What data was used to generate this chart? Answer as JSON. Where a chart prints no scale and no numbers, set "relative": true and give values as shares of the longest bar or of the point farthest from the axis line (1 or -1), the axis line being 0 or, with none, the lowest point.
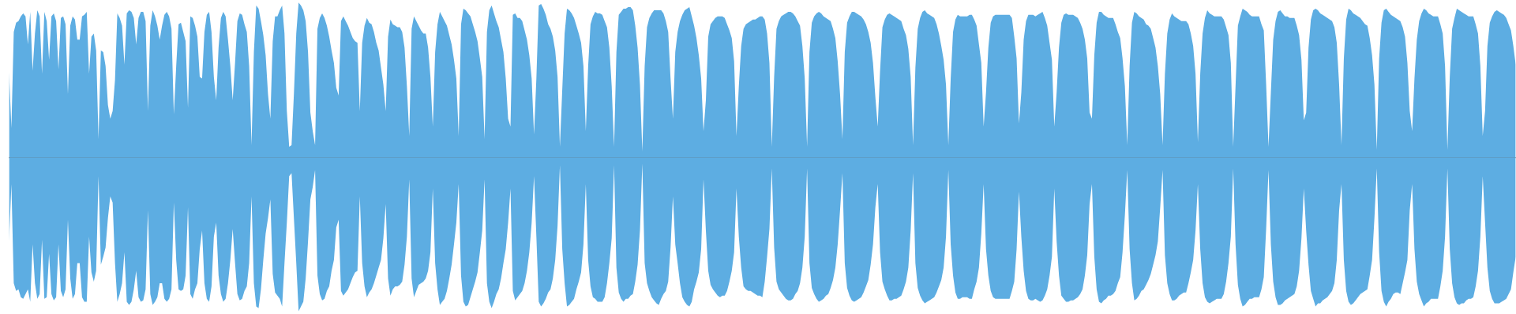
{
  "chart_data": {
    "type": "area",
    "relative": true,
    "categories": [
      null,
      null,
      null,
      null,
      null,
      null,
      null,
      null,
      null,
      null,
      null,
      null,
      null,
      null,
      null,
      null,
      null,
      null,
      null,
      null,
      null,
      null,
      null,
      null,
      null,
      null,
      null,
      null,
      null,
      null,
      null,
      null,
      null,
      null,
      null,
      null,
      null,
      null,
      null,
      null,
      null,
      null,
      null,
      null,
      null,
      null,
      null,
      null,
      null,
      null,
      null,
      null,
      null,
      null,
      null,
      null,
      null,
      null,
      null,
      null,
      null,
      null,
      null,
      null,
      null,
      null,
      null,
      null,
      null,
      null,
      null,
      null,
      null,
      null,
      null,
      null,
      null,
      null,
      null,
      null,
      null,
      null,
      null,
      null,
      null,
      null,
      null,
      null,
      null,
      null,
      null,
      null,
      null,
      null,
      null,
      null,
      null,
      null,
      null,
      null,
      null,
      null,
      null,
      null,
      null,
      null,
      null,
      null,
      null,
      null,
      null,
      null,
      null,
      null,
      null,
      null,
      null,
      null,
      null,
      null,
      null,
      null,
      null,
      null,
      null,
      null,
      null,
      null,
      null,
      null,
      null,
      null,
      null,
      null,
      null,
      null,
      null,
      null,
      null,
      null,
      null,
      null,
      null,
      null,
      null,
      null,
      null,
      null,
      null,
      null,
      null,
      null,
      null,
      null,
      null,
      null,
      null,
      null,
      null,
      null,
      null,
      null,
      null,
      null,
      null,
      null,
      null,
      null,
      null,
      null,
      null,
      null,
      null,
      null,
      null,
      null,
      null,
      null,
      null,
      null,
      null,
      null,
      null,
      null,
      null,
      null,
      null,
      null,
      null,
      null,
      null,
      null,
      null,
      null,
      null,
      null,
      null,
      null,
      null,
      null,
      null,
      null,
      null,
      null,
      null,
      null,
      null,
      null,
      null,
      null,
      null,
      null,
      null,
      null,
      null,
      null,
      null,
      null,
      null,
      null,
      null,
      null,
      null,
      null,
      null,
      null,
      null,
      null,
      null,
      null,
      null,
      null,
      null,
      null,
      null,
      null,
      null,
      null,
      null,
      null,
      null,
      null,
      null,
      null,
      null,
      null,
      null,
      null,
      null,
      null,
      null,
      null,
      null,
      null,
      null,
      null,
      null,
      null,
      null,
      null,
      null,
      null,
      null,
      null,
      null,
      null,
      null,
      null,
      null,
      null,
      null,
      null,
      null,
      null,
      null,
      null,
      null,
      null,
      null,
      null,
      null,
      null,
      null,
      null,
      null,
      null,
      null,
      null,
      null,
      null,
      null,
      null,
      null,
      null,
      null,
      null,
      null,
      null,
      null,
      null,
      null,
      null,
      null,
      null,
      null,
      null,
      null,
      null,
      null,
      null,
      null,
      null,
      null,
      null,
      null,
      null,
      null,
      null,
      null,
      null,
      null,
      null,
      null,
      null,
      null,
      null,
      null,
      null,
      null,
      null,
      null,
      null,
      null,
      null,
      null,
      null,
      null,
      null,
      null,
      null,
      null,
      null,
      null,
      null,
      null,
      null,
      null,
      null,
      null,
      null,
      null,
      null,
      null,
      null,
      null,
      null,
      null,
      null,
      null,
      null,
      null,
      null,
      null,
      null,
      null,
      null,
      null,
      null,
      null,
      null,
      null,
      null,
      null,
      null,
      null,
      null,
      null,
      null,
      null,
      null,
      null,
      null,
      null,
      null,
      null,
      null,
      null,
      null,
      null,
      null,
      null,
      null,
      null,
      null,
      null,
      null,
      null,
      null,
      null,
      null,
      null,
      null,
      null,
      null,
      null,
      null,
      null,
      null,
      null,
      null,
      null,
      null,
      null,
      null,
      null,
      null,
      null,
      null,
      null,
      null,
      null,
      null,
      null,
      null,
      null,
      null,
      null,
      null,
      null,
      null,
      null,
      null,
      null,
      null,
      null,
      null,
      null,
      null,
      null,
      null,
      null,
      null,
      null,
      null,
      null,
      null,
      null,
      null,
      null,
      null,
      null,
      null,
      null,
      null,
      null,
      null,
      null,
      null,
      null,
      null,
      null,
      null,
      null,
      null,
      null,
      null,
      null,
      null,
      null,
      null,
      null,
      null,
      null,
      null,
      null,
      null,
      null,
      null,
      null,
      null,
      null,
      null,
      null,
      null,
      null,
      null,
      null,
      null,
      null,
      null,
      null,
      null,
      null,
      null,
      null,
      null,
      null,
      null,
      null,
      null,
      null,
      null,
      null,
      null,
      null,
      null,
      null,
      null,
      null,
      null,
      null,
      null,
      null,
      null,
      null,
      null,
      null,
      null,
      null,
      null,
      null,
      null,
      null,
      null,
      null,
      null,
      null,
      null,
      null,
      null,
      null,
      null,
      null,
      null,
      null,
      null,
      null,
      null,
      null,
      null,
      null,
      null,
      null,
      null,
      null,
      null,
      null,
      null,
      null,
      null,
      null,
      null,
      null,
      null,
      null,
      null,
      null,
      null,
      null,
      null,
      null,
      null,
      null,
      null,
      null,
      null,
      null,
      null,
      null,
      null,
      null,
      null,
      null,
      null,
      null,
      null,
      null,
      null,
      null,
      null,
      null,
      null,
      null,
      null,
      null,
      null,
      null,
      null,
      null,
      null,
      null,
      null,
      null,
      null,
      null,
      null,
      null,
      null,
      null,
      null,
      null,
      null,
      null,
      null,
      null,
      null,
      null,
      null,
      null,
      null,
      null,
      null,
      null,
      null,
      null,
      null,
      null,
      null,
      null,
      null,
      null,
      null,
      null,
      null,
      null,
      null,
      null,
      null,
      null,
      null,
      null,
      null,
      null,
      null,
      null,
      null,
      null,
      null,
      null,
      null,
      null
    ],
    "series": [
      {
        "color": "#5dade2",
        "values": [
          0.55,
          0.19,
          0.81,
          0.87,
          0.88,
          0.91,
          0.93,
          0.91,
          0.73,
          0.94,
          0.56,
          0.8,
          0.95,
          0.91,
          0.54,
          0.94,
          0.88,
          0.63,
          0.91,
          0.93,
          0.88,
          0.57,
          0.9,
          0.91,
          0.86,
          0.41,
          0.85,
          0.91,
          0.89,
          0.76,
          0.76,
          0.91,
          0.92,
          0.94,
          0.54,
          0.78,
          0.8,
          0.69,
          0.12,
          0.69,
          0.68,
          0.59,
          0.34,
          0.25,
          0.3,
          0.5,
          0.93,
          0.9,
          0.85,
          0.6,
          0.93,
          0.95,
          0.94,
          0.9,
          0.73,
          0.9,
          0.94,
          0.94,
          0.88,
          0.3,
          0.85,
          0.95,
          0.91,
          0.85,
          0.76,
          0.85,
          0.92,
          0.94,
          0.91,
          0.83,
          0.28,
          0.59,
          0.86,
          0.87,
          0.81,
          0.75,
          0.32,
          0.91,
          0.9,
          0.85,
          0.78,
          0.52,
          0.51,
          0.81,
          0.92,
          0.94,
          0.81,
          0.52,
          0.37,
          0.71,
          0.9,
          0.94,
          0.91,
          0.76,
          0.59,
          0.37,
          0.61,
          0.88,
          0.93,
          0.92,
          0.86,
          0.81,
          0.59,
          0.08,
          0.68,
          0.98,
          0.96,
          0.88,
          0.79,
          0.66,
          0.41,
          0.25,
          0.75,
          0.91,
          0.91,
          0.95,
          0.98,
          0.8,
          0.3,
          0.07,
          0.08,
          0.41,
          0.8,
          1,
          0.98,
          0.95,
          0.88,
          0.68,
          0.29,
          0.17,
          0.08,
          0.83,
          0.9,
          0.93,
          0.9,
          0.85,
          0.78,
          0.69,
          0.61,
          0.45,
          0.4,
          0.88,
          0.91,
          0.88,
          0.85,
          0.81,
          0.77,
          0.75,
          0.74,
          0.3,
          0.74,
          0.85,
          0.9,
          0.87,
          0.86,
          0.81,
          0.74,
          0.69,
          0.58,
          0.47,
          0.3,
          0.78,
          0.89,
          0.86,
          0.85,
          0.84,
          0.84,
          0.81,
          0.71,
          0.46,
          0.14,
          0.83,
          0.91,
          0.88,
          0.85,
          0.82,
          0.8,
          0.8,
          0.71,
          0.52,
          0.2,
          0.68,
          0.86,
          0.94,
          0.91,
          0.88,
          0.85,
          0.79,
          0.73,
          0.63,
          0.51,
          0.14,
          0.86,
          0.96,
          0.95,
          0.93,
          0.91,
          0.86,
          0.81,
          0.75,
          0.64,
          0.52,
          0.12,
          0.81,
          0.95,
          0.98,
          0.93,
          0.88,
          0.84,
          0.76,
          0.68,
          0.51,
          0.25,
          0.2,
          0.92,
          0.93,
          0.9,
          0.9,
          0.88,
          0.82,
          0.76,
          0.66,
          0.51,
          0.15,
          0.51,
          0.98,
          0.99,
          0.96,
          0.92,
          0.86,
          0.83,
          0.78,
          0.69,
          0.52,
          0.07,
          0.44,
          0.8,
          0.96,
          0.95,
          0.93,
          0.9,
          0.85,
          0.8,
          0.74,
          0.59,
          0.17,
          0.59,
          0.86,
          0.91,
          0.94,
          0.93,
          0.93,
          0.92,
          0.88,
          0.84,
          0.71,
          0.46,
          0.07,
          0.68,
          0.92,
          0.94,
          0.96,
          0.96,
          0.97,
          0.97,
          0.95,
          0.85,
          0.71,
          0.47,
          0.04,
          0.59,
          0.84,
          0.9,
          0.93,
          0.95,
          0.95,
          0.95,
          0.95,
          0.93,
          0.88,
          0.81,
          0.51,
          0.25,
          0.68,
          0.81,
          0.88,
          0.92,
          0.95,
          0.96,
          0.97,
          0.91,
          0.85,
          0.77,
          0.66,
          0.51,
          0.17,
          0.37,
          0.78,
          0.86,
          0.88,
          0.9,
          0.91,
          0.91,
          0.91,
          0.9,
          0.86,
          0.82,
          0.77,
          0.62,
          0.14,
          0.46,
          0.72,
          0.83,
          0.86,
          0.87,
          0.88,
          0.89,
          0.89,
          0.9,
          0.91,
          0.91,
          0.89,
          0.8,
          0.61,
          0.07,
          0.52,
          0.83,
          0.88,
          0.91,
          0.92,
          0.93,
          0.94,
          0.94,
          0.93,
          0.91,
          0.88,
          0.85,
          0.72,
          0.51,
          0.07,
          0.68,
          0.87,
          0.91,
          0.93,
          0.94,
          0.93,
          0.91,
          0.9,
          0.89,
          0.88,
          0.83,
          0.77,
          0.62,
          0.41,
          0.12,
          0.68,
          0.87,
          0.91,
          0.94,
          0.94,
          0.93,
          0.92,
          0.91,
          0.89,
          0.86,
          0.81,
          0.74,
          0.61,
          0.39,
          0.2,
          0.56,
          0.84,
          0.89,
          0.92,
          0.93,
          0.92,
          0.91,
          0.9,
          0.89,
          0.88,
          0.83,
          0.79,
          0.7,
          0.52,
          0.08,
          0.58,
          0.83,
          0.9,
          0.94,
          0.95,
          0.93,
          0.92,
          0.91,
          0.9,
          0.86,
          0.8,
          0.72,
          0.63,
          0.47,
          0.08,
          0.51,
          0.81,
          0.89,
          0.92,
          0.91,
          0.91,
          0.91,
          0.91,
          0.92,
          0.92,
          0.89,
          0.85,
          0.73,
          0.61,
          0.2,
          0.42,
          0.71,
          0.87,
          0.91,
          0.92,
          0.92,
          0.92,
          0.92,
          0.92,
          0.92,
          0.92,
          0.9,
          0.78,
          0.64,
          0.22,
          0.42,
          0.76,
          0.88,
          0.92,
          0.92,
          0.92,
          0.91,
          0.92,
          0.93,
          0.94,
          0.9,
          0.85,
          0.74,
          0.63,
          0.2,
          0.42,
          0.71,
          0.87,
          0.92,
          0.93,
          0.92,
          0.92,
          0.92,
          0.91,
          0.9,
          0.87,
          0.83,
          0.76,
          0.64,
          0.29,
          0.25,
          0.66,
          0.87,
          0.94,
          0.94,
          0.92,
          0.91,
          0.9,
          0.9,
          0.9,
          0.86,
          0.81,
          0.77,
          0.64,
          0.46,
          0.08,
          0.59,
          0.87,
          0.94,
          0.93,
          0.91,
          0.9,
          0.89,
          0.86,
          0.85,
          0.83,
          0.77,
          0.71,
          0.59,
          0.41,
          0.08,
          0.54,
          0.8,
          0.89,
          0.93,
          0.91,
          0.9,
          0.89,
          0.88,
          0.88,
          0.88,
          0.86,
          0.8,
          0.72,
          0.54,
          0.1,
          0.54,
          0.8,
          0.9,
          0.95,
          0.93,
          0.92,
          0.91,
          0.91,
          0.91,
          0.91,
          0.89,
          0.84,
          0.79,
          0.61,
          0.07,
          0.46,
          0.85,
          0.91,
          0.96,
          0.95,
          0.94,
          0.92,
          0.91,
          0.91,
          0.91,
          0.91,
          0.86,
          0.82,
          0.47,
          0.07,
          0.42,
          0.76,
          0.88,
          0.94,
          0.95,
          0.93,
          0.91,
          0.91,
          0.9,
          0.9,
          0.9,
          0.85,
          0.79,
          0.63,
          0.24,
          0.29,
          0.71,
          0.89,
          0.95,
          0.96,
          0.95,
          0.93,
          0.92,
          0.91,
          0.9,
          0.89,
          0.88,
          0.84,
          0.74,
          0.47,
          0.08,
          0.64,
          0.89,
          0.96,
          0.95,
          0.93,
          0.92,
          0.91,
          0.9,
          0.88,
          0.86,
          0.85,
          0.77,
          0.66,
          0.47,
          0.05,
          0.64,
          0.87,
          0.95,
          0.96,
          0.94,
          0.92,
          0.91,
          0.9,
          0.89,
          0.88,
          0.84,
          0.78,
          0.61,
          0.3,
          0.17,
          0.51,
          0.76,
          0.88,
          0.93,
          0.96,
          0.95,
          0.93,
          0.92,
          0.91,
          0.91,
          0.91,
          0.86,
          0.8,
          0.59,
          0.05,
          0.52,
          0.83,
          0.9,
          0.96,
          0.95,
          0.94,
          0.93,
          0.92,
          0.91,
          0.91,
          0.91,
          0.86,
          0.8,
          0.59,
          0.14,
          0.3,
          0.72,
          0.87,
          0.91,
          0.94,
          0.95,
          0.94,
          0.93,
          0.92,
          0.9,
          0.86,
          0.82,
          0.72,
          0.6
        ]
      },
      {
        "color": "#5dade2",
        "values": [
          -0.54,
          -0.17,
          -0.81,
          -0.86,
          -0.85,
          -0.9,
          -0.91,
          -0.88,
          -0.85,
          -0.93,
          -0.56,
          -0.81,
          -0.91,
          -0.88,
          -0.53,
          -0.91,
          -0.9,
          -0.62,
          -0.88,
          -0.92,
          -0.9,
          -0.56,
          -0.86,
          -0.9,
          -0.85,
          -0.4,
          -0.78,
          -0.91,
          -0.88,
          -0.68,
          -0.68,
          -0.9,
          -0.93,
          -0.93,
          -0.51,
          -0.74,
          -0.8,
          -0.73,
          -0.12,
          -0.69,
          -0.64,
          -0.58,
          -0.39,
          -0.25,
          -0.29,
          -0.68,
          -0.93,
          -0.88,
          -0.81,
          -0.61,
          -0.93,
          -0.95,
          -0.93,
          -0.85,
          -0.73,
          -0.9,
          -0.93,
          -0.92,
          -0.85,
          -0.34,
          -0.88,
          -0.95,
          -0.93,
          -0.9,
          -0.81,
          -0.81,
          -0.91,
          -0.93,
          -0.91,
          -0.85,
          -0.29,
          -0.66,
          -0.85,
          -0.86,
          -0.85,
          -0.76,
          -0.32,
          -0.88,
          -0.91,
          -0.85,
          -0.81,
          -0.59,
          -0.47,
          -0.81,
          -0.91,
          -0.93,
          -0.83,
          -0.51,
          -0.42,
          -0.76,
          -0.88,
          -0.93,
          -0.91,
          -0.81,
          -0.66,
          -0.46,
          -0.68,
          -0.88,
          -0.92,
          -0.91,
          -0.86,
          -0.83,
          -0.68,
          -0.25,
          -0.81,
          -0.96,
          -0.97,
          -0.85,
          -0.66,
          -0.49,
          -0.39,
          -0.27,
          -0.75,
          -0.87,
          -0.89,
          -0.91,
          -0.96,
          -0.68,
          -0.42,
          -0.12,
          -0.1,
          -0.39,
          -0.68,
          -0.99,
          -0.96,
          -0.93,
          -0.78,
          -0.54,
          -0.27,
          -0.19,
          -0.08,
          -0.76,
          -0.88,
          -0.92,
          -0.91,
          -0.86,
          -0.83,
          -0.73,
          -0.66,
          -0.45,
          -0.4,
          -0.86,
          -0.89,
          -0.87,
          -0.85,
          -0.81,
          -0.77,
          -0.74,
          -0.73,
          -0.25,
          -0.68,
          -0.83,
          -0.9,
          -0.87,
          -0.85,
          -0.81,
          -0.76,
          -0.71,
          -0.66,
          -0.52,
          -0.3,
          -0.78,
          -0.89,
          -0.85,
          -0.83,
          -0.83,
          -0.82,
          -0.8,
          -0.69,
          -0.51,
          -0.14,
          -0.78,
          -0.9,
          -0.86,
          -0.82,
          -0.81,
          -0.8,
          -0.78,
          -0.73,
          -0.61,
          -0.2,
          -0.68,
          -0.85,
          -0.95,
          -0.93,
          -0.91,
          -0.86,
          -0.78,
          -0.69,
          -0.56,
          -0.42,
          -0.17,
          -0.76,
          -0.93,
          -0.96,
          -0.95,
          -0.9,
          -0.85,
          -0.8,
          -0.74,
          -0.61,
          -0.47,
          -0.14,
          -0.81,
          -0.93,
          -0.97,
          -0.93,
          -0.88,
          -0.85,
          -0.78,
          -0.68,
          -0.59,
          -0.42,
          -0.2,
          -0.86,
          -0.92,
          -0.9,
          -0.88,
          -0.86,
          -0.81,
          -0.73,
          -0.61,
          -0.42,
          -0.12,
          -0.51,
          -0.93,
          -0.96,
          -0.94,
          -0.91,
          -0.87,
          -0.85,
          -0.78,
          -0.66,
          -0.44,
          -0.05,
          -0.59,
          -0.81,
          -0.96,
          -0.95,
          -0.93,
          -0.91,
          -0.85,
          -0.8,
          -0.74,
          -0.56,
          -0.17,
          -0.66,
          -0.83,
          -0.9,
          -0.91,
          -0.93,
          -0.93,
          -0.93,
          -0.9,
          -0.81,
          -0.68,
          -0.52,
          -0.05,
          -0.71,
          -0.87,
          -0.91,
          -0.93,
          -0.91,
          -0.91,
          -0.89,
          -0.88,
          -0.8,
          -0.69,
          -0.47,
          -0.04,
          -0.68,
          -0.81,
          -0.86,
          -0.9,
          -0.92,
          -0.94,
          -0.95,
          -0.91,
          -0.88,
          -0.86,
          -0.8,
          -0.58,
          -0.25,
          -0.56,
          -0.68,
          -0.81,
          -0.9,
          -0.93,
          -0.95,
          -0.96,
          -0.93,
          -0.85,
          -0.8,
          -0.74,
          -0.59,
          -0.14,
          -0.47,
          -0.73,
          -0.82,
          -0.85,
          -0.87,
          -0.89,
          -0.9,
          -0.89,
          -0.89,
          -0.86,
          -0.8,
          -0.73,
          -0.61,
          -0.2,
          -0.51,
          -0.71,
          -0.83,
          -0.85,
          -0.86,
          -0.86,
          -0.87,
          -0.88,
          -0.89,
          -0.89,
          -0.9,
          -0.8,
          -0.64,
          -0.46,
          -0.07,
          -0.58,
          -0.8,
          -0.85,
          -0.87,
          -0.89,
          -0.91,
          -0.92,
          -0.92,
          -0.91,
          -0.88,
          -0.86,
          -0.81,
          -0.71,
          -0.51,
          -0.07,
          -0.68,
          -0.84,
          -0.88,
          -0.91,
          -0.93,
          -0.92,
          -0.91,
          -0.89,
          -0.88,
          -0.84,
          -0.79,
          -0.71,
          -0.56,
          -0.34,
          -0.1,
          -0.68,
          -0.84,
          -0.89,
          -0.92,
          -0.93,
          -0.92,
          -0.91,
          -0.9,
          -0.87,
          -0.83,
          -0.79,
          -0.69,
          -0.56,
          -0.32,
          -0.17,
          -0.61,
          -0.8,
          -0.85,
          -0.89,
          -0.92,
          -0.92,
          -0.91,
          -0.91,
          -0.9,
          -0.89,
          -0.85,
          -0.8,
          -0.71,
          -0.47,
          -0.1,
          -0.68,
          -0.84,
          -0.89,
          -0.92,
          -0.94,
          -0.93,
          -0.92,
          -0.91,
          -0.9,
          -0.87,
          -0.83,
          -0.79,
          -0.71,
          -0.51,
          -0.08,
          -0.56,
          -0.76,
          -0.87,
          -0.91,
          -0.91,
          -0.9,
          -0.9,
          -0.9,
          -0.91,
          -0.91,
          -0.85,
          -0.8,
          -0.71,
          -0.49,
          -0.17,
          -0.59,
          -0.76,
          -0.86,
          -0.9,
          -0.91,
          -0.91,
          -0.91,
          -0.91,
          -0.91,
          -0.91,
          -0.91,
          -0.86,
          -0.8,
          -0.59,
          -0.22,
          -0.51,
          -0.73,
          -0.86,
          -0.91,
          -0.92,
          -0.92,
          -0.91,
          -0.92,
          -0.93,
          -0.92,
          -0.89,
          -0.85,
          -0.76,
          -0.64,
          -0.2,
          -0.54,
          -0.76,
          -0.89,
          -0.91,
          -0.93,
          -0.93,
          -0.92,
          -0.92,
          -0.91,
          -0.9,
          -0.88,
          -0.85,
          -0.76,
          -0.63,
          -0.3,
          -0.17,
          -0.64,
          -0.85,
          -0.93,
          -0.94,
          -0.92,
          -0.91,
          -0.89,
          -0.89,
          -0.88,
          -0.86,
          -0.81,
          -0.77,
          -0.61,
          -0.37,
          -0.08,
          -0.59,
          -0.81,
          -0.92,
          -0.91,
          -0.89,
          -0.86,
          -0.85,
          -0.82,
          -0.79,
          -0.75,
          -0.69,
          -0.63,
          -0.54,
          -0.32,
          -0.08,
          -0.63,
          -0.81,
          -0.88,
          -0.92,
          -0.92,
          -0.91,
          -0.89,
          -0.88,
          -0.87,
          -0.87,
          -0.81,
          -0.74,
          -0.66,
          -0.47,
          -0.17,
          -0.59,
          -0.81,
          -0.9,
          -0.93,
          -0.94,
          -0.93,
          -0.92,
          -0.91,
          -0.91,
          -0.91,
          -0.88,
          -0.8,
          -0.68,
          -0.51,
          -0.07,
          -0.56,
          -0.82,
          -0.91,
          -0.96,
          -0.95,
          -0.93,
          -0.91,
          -0.91,
          -0.9,
          -0.9,
          -0.9,
          -0.85,
          -0.77,
          -0.46,
          -0.08,
          -0.56,
          -0.8,
          -0.9,
          -0.95,
          -0.95,
          -0.94,
          -0.92,
          -0.91,
          -0.9,
          -0.89,
          -0.88,
          -0.83,
          -0.73,
          -0.52,
          -0.2,
          -0.47,
          -0.69,
          -0.86,
          -0.91,
          -0.96,
          -0.94,
          -0.94,
          -0.92,
          -0.91,
          -0.9,
          -0.88,
          -0.86,
          -0.81,
          -0.66,
          -0.34,
          -0.17,
          -0.66,
          -0.86,
          -0.93,
          -0.95,
          -0.94,
          -0.92,
          -0.9,
          -0.88,
          -0.87,
          -0.86,
          -0.85,
          -0.76,
          -0.66,
          -0.39,
          -0.07,
          -0.61,
          -0.86,
          -0.93,
          -0.96,
          -0.93,
          -0.91,
          -0.88,
          -0.87,
          -0.87,
          -0.88,
          -0.81,
          -0.74,
          -0.66,
          -0.34,
          -0.17,
          -0.59,
          -0.8,
          -0.88,
          -0.92,
          -0.96,
          -0.94,
          -0.93,
          -0.91,
          -0.91,
          -0.91,
          -0.91,
          -0.83,
          -0.73,
          -0.51,
          -0.07,
          -0.59,
          -0.81,
          -0.9,
          -0.94,
          -0.95,
          -0.94,
          -0.94,
          -0.92,
          -0.91,
          -0.91,
          -0.9,
          -0.83,
          -0.73,
          -0.51,
          -0.12,
          -0.42,
          -0.71,
          -0.86,
          -0.91,
          -0.94,
          -0.94,
          -0.94,
          -0.93,
          -0.92,
          -0.91,
          -0.88,
          -0.85,
          -0.74,
          -0.64
        ]
      }
    ]
  }
}
